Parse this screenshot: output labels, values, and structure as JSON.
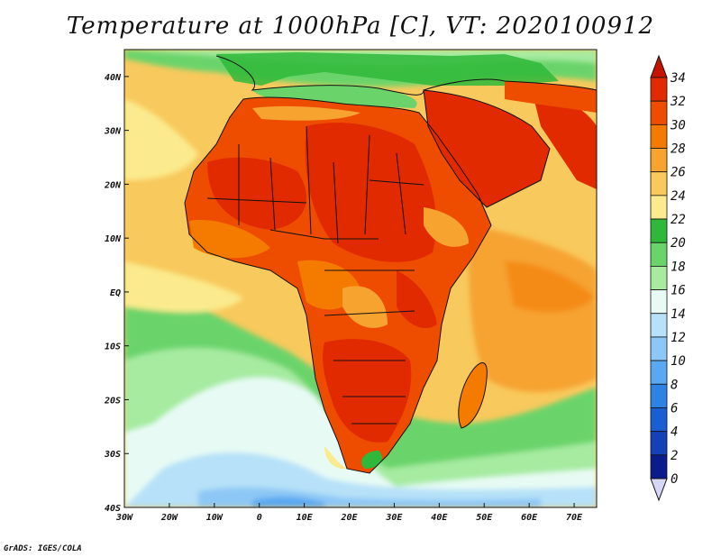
{
  "title": "Temperature at 1000hPa [C], VT: 2020100912",
  "footer": "GrADS: IGES/COLA",
  "map": {
    "type": "filled-contour-map",
    "variable": "Temperature at 1000hPa",
    "units": "C",
    "valid_time": "2020100912",
    "lon_range": [
      -30,
      75
    ],
    "lat_range": [
      -40,
      45
    ],
    "lon_ticks": [
      "30W",
      "20W",
      "10W",
      "0",
      "10E",
      "20E",
      "30E",
      "40E",
      "50E",
      "60E",
      "70E"
    ],
    "lat_ticks": [
      "40N",
      "30N",
      "20N",
      "10N",
      "EQ",
      "10S",
      "20S",
      "30S",
      "40S"
    ]
  },
  "colorbar": {
    "levels": [
      "34",
      "32",
      "30",
      "28",
      "26",
      "24",
      "22",
      "20",
      "18",
      "16",
      "14",
      "12",
      "10",
      "8",
      "6",
      "4",
      "2",
      "0"
    ],
    "colors": [
      "#e22a00",
      "#ee4d00",
      "#f47b00",
      "#f6a330",
      "#f8c95c",
      "#fbeb8e",
      "#2fb83a",
      "#6ad46a",
      "#a6eba0",
      "#e7fbf4",
      "#b6e1f8",
      "#8dc7f6",
      "#5aa8f1",
      "#2e82e4",
      "#1a5ed3",
      "#1440b8",
      "#0a1c8c",
      "#0a0a6e",
      "#d6d6f6"
    ],
    "top_arrow_color": "#c41400",
    "bottom_arrow_color": "#d6d6f6"
  }
}
